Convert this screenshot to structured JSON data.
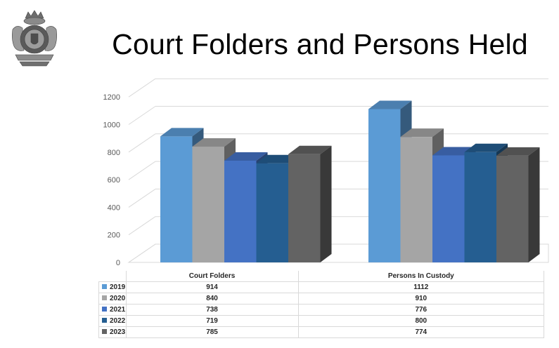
{
  "title": "Court Folders and Persons Held",
  "logo": {
    "icon": "rcmp-crest",
    "lettering": "Royal Canadian Mounted Police crest"
  },
  "chart_data": {
    "type": "bar",
    "style": "3d-clustered-column",
    "categories": [
      "Court Folders",
      "Persons In Custody"
    ],
    "series": [
      {
        "name": "2019",
        "values": [
          914,
          1112
        ],
        "color": "#5b9bd5"
      },
      {
        "name": "2020",
        "values": [
          840,
          910
        ],
        "color": "#a5a5a5"
      },
      {
        "name": "2021",
        "values": [
          738,
          776
        ],
        "color": "#4472c4"
      },
      {
        "name": "2022",
        "values": [
          719,
          800
        ],
        "color": "#255e91"
      },
      {
        "name": "2023",
        "values": [
          785,
          774
        ],
        "color": "#636363"
      }
    ],
    "y_ticks": [
      0,
      200,
      400,
      600,
      800,
      1000,
      1200
    ],
    "ylim": [
      0,
      1200
    ],
    "grid": true,
    "legend": "data-table-below"
  }
}
